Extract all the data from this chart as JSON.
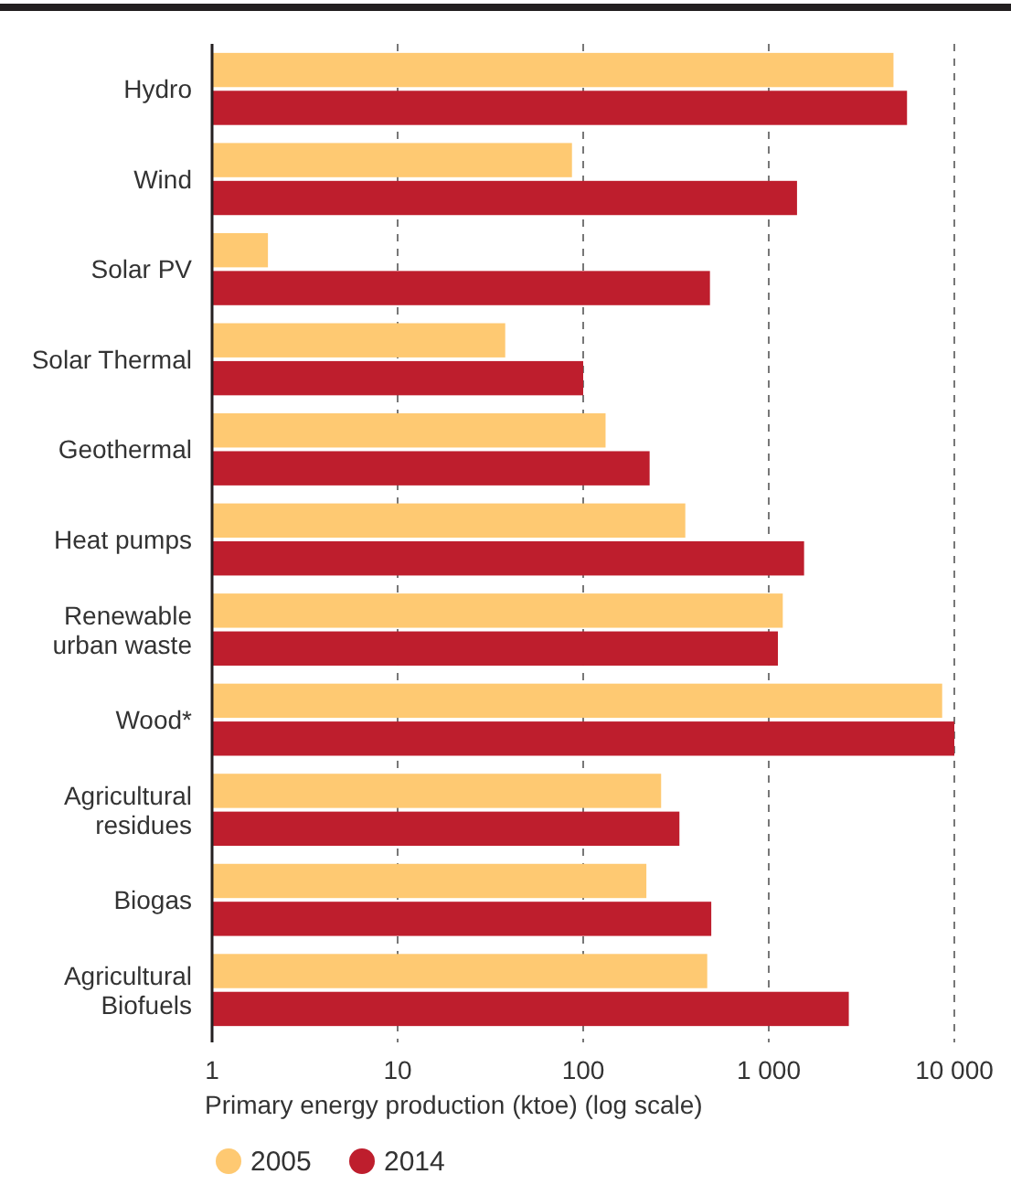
{
  "chart_data": {
    "type": "bar",
    "orientation": "horizontal",
    "log": "x",
    "xlabel": "Primary energy production (ktoe) (log scale)",
    "categories": [
      "Hydro",
      "Wind",
      "Solar PV",
      "Solar Thermal",
      "Geothermal",
      "Heat pumps",
      "Renewable\nurban waste",
      "Wood*",
      "Agricultural\nresidues",
      "Biogas",
      "Agricultural\nBiofuels"
    ],
    "series": [
      {
        "name": "2005",
        "color": "#fec972",
        "values": [
          4700,
          87,
          2,
          38,
          132,
          355,
          1190,
          8600,
          263,
          219,
          466
        ]
      },
      {
        "name": "2014",
        "color": "#be1e2d",
        "values": [
          5560,
          1420,
          482,
          100,
          228,
          1550,
          1120,
          10000,
          330,
          490,
          2700
        ]
      }
    ],
    "xlim": [
      1,
      10000
    ],
    "xticks": [
      1,
      10,
      100,
      {
        "value": 1000,
        "label": "1 000"
      },
      {
        "value": 10000,
        "label": "10 000"
      }
    ],
    "grid": "x",
    "legend": "bottom left"
  }
}
